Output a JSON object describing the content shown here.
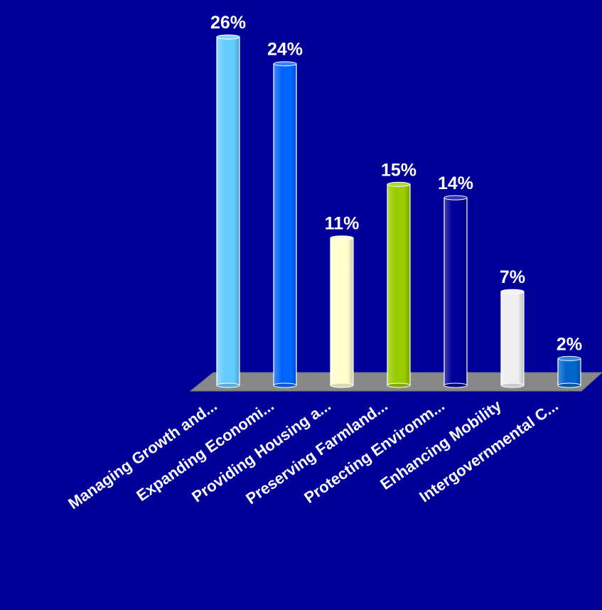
{
  "chart_data": {
    "type": "bar",
    "title": "",
    "xlabel": "",
    "ylabel": "",
    "ylim": [
      0,
      26
    ],
    "grid": false,
    "legend": "none",
    "categories": [
      "Managing Growth and...",
      "Expanding Economi...",
      "Providing Housing a...",
      "Preserving Farmland...",
      "Protecting Environm...",
      "Enhancing Mobility",
      "Intergovernmental C..."
    ],
    "values": [
      26,
      24,
      11,
      15,
      14,
      7,
      2
    ],
    "value_labels": [
      "26%",
      "24%",
      "11%",
      "15%",
      "14%",
      "7%",
      "2%"
    ],
    "colors": [
      "#66ccff",
      "#0066ff",
      "#ffffcc",
      "#99cc00",
      "#000099",
      "#eeeeee",
      "#0066cc"
    ]
  },
  "background": "#000099",
  "floor_color": "#888888"
}
